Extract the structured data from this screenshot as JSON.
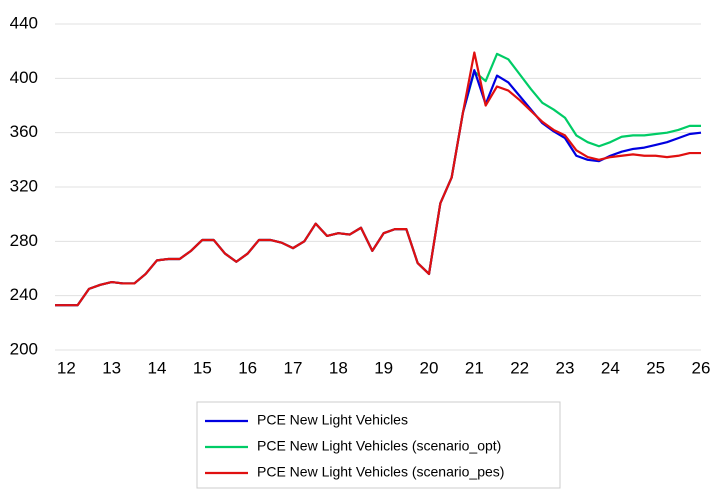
{
  "chart_data": {
    "type": "line",
    "categories": [
      null,
      "12",
      null,
      null,
      null,
      "13",
      null,
      null,
      null,
      "14",
      null,
      null,
      null,
      "15",
      null,
      null,
      null,
      "16",
      null,
      null,
      null,
      "17",
      null,
      null,
      null,
      "18",
      null,
      null,
      null,
      "19",
      null,
      null,
      null,
      "20",
      null,
      null,
      null,
      "21",
      null,
      null,
      null,
      "22",
      null,
      null,
      null,
      "23",
      null,
      null,
      null,
      "24",
      null,
      null,
      null,
      "25",
      null,
      null,
      null,
      "26"
    ],
    "series": [
      {
        "name": "PCE New Light Vehicles",
        "color": "#0000e0",
        "values": [
          233,
          233,
          233,
          245,
          248,
          250,
          249,
          249,
          256,
          266,
          267,
          267,
          273,
          281,
          281,
          271,
          265,
          271,
          281,
          281,
          279,
          275,
          280,
          293,
          284,
          286,
          285,
          290,
          273,
          286,
          289,
          289,
          264,
          256,
          308,
          327,
          375,
          406,
          381,
          402,
          397,
          387,
          377,
          367,
          361,
          356,
          343,
          340,
          339,
          343,
          346,
          348,
          349,
          351,
          353,
          356,
          359,
          360
        ]
      },
      {
        "name": "PCE New Light Vehicles (scenario_opt)",
        "color": "#00cc66",
        "values": [
          233,
          233,
          233,
          245,
          248,
          250,
          249,
          249,
          256,
          266,
          267,
          267,
          273,
          281,
          281,
          271,
          265,
          271,
          281,
          281,
          279,
          275,
          280,
          293,
          284,
          286,
          285,
          290,
          273,
          286,
          289,
          289,
          264,
          256,
          308,
          327,
          375,
          405,
          398,
          418,
          414,
          403,
          392,
          382,
          377,
          371,
          358,
          353,
          350,
          353,
          357,
          358,
          358,
          359,
          360,
          362,
          365,
          365
        ]
      },
      {
        "name": "PCE New Light Vehicles (scenario_pes)",
        "color": "#e01010",
        "values": [
          233,
          233,
          233,
          245,
          248,
          250,
          249,
          249,
          256,
          266,
          267,
          267,
          273,
          281,
          281,
          271,
          265,
          271,
          281,
          281,
          279,
          275,
          280,
          293,
          284,
          286,
          285,
          290,
          273,
          286,
          289,
          289,
          264,
          256,
          308,
          327,
          375,
          419,
          380,
          394,
          391,
          384,
          376,
          368,
          362,
          358,
          347,
          342,
          340,
          342,
          343,
          344,
          343,
          343,
          342,
          343,
          345,
          345
        ]
      }
    ],
    "ylim": [
      200,
      440
    ],
    "yticks": [
      200,
      240,
      280,
      320,
      360,
      400,
      440
    ],
    "grid": true,
    "legend": "bottom"
  }
}
